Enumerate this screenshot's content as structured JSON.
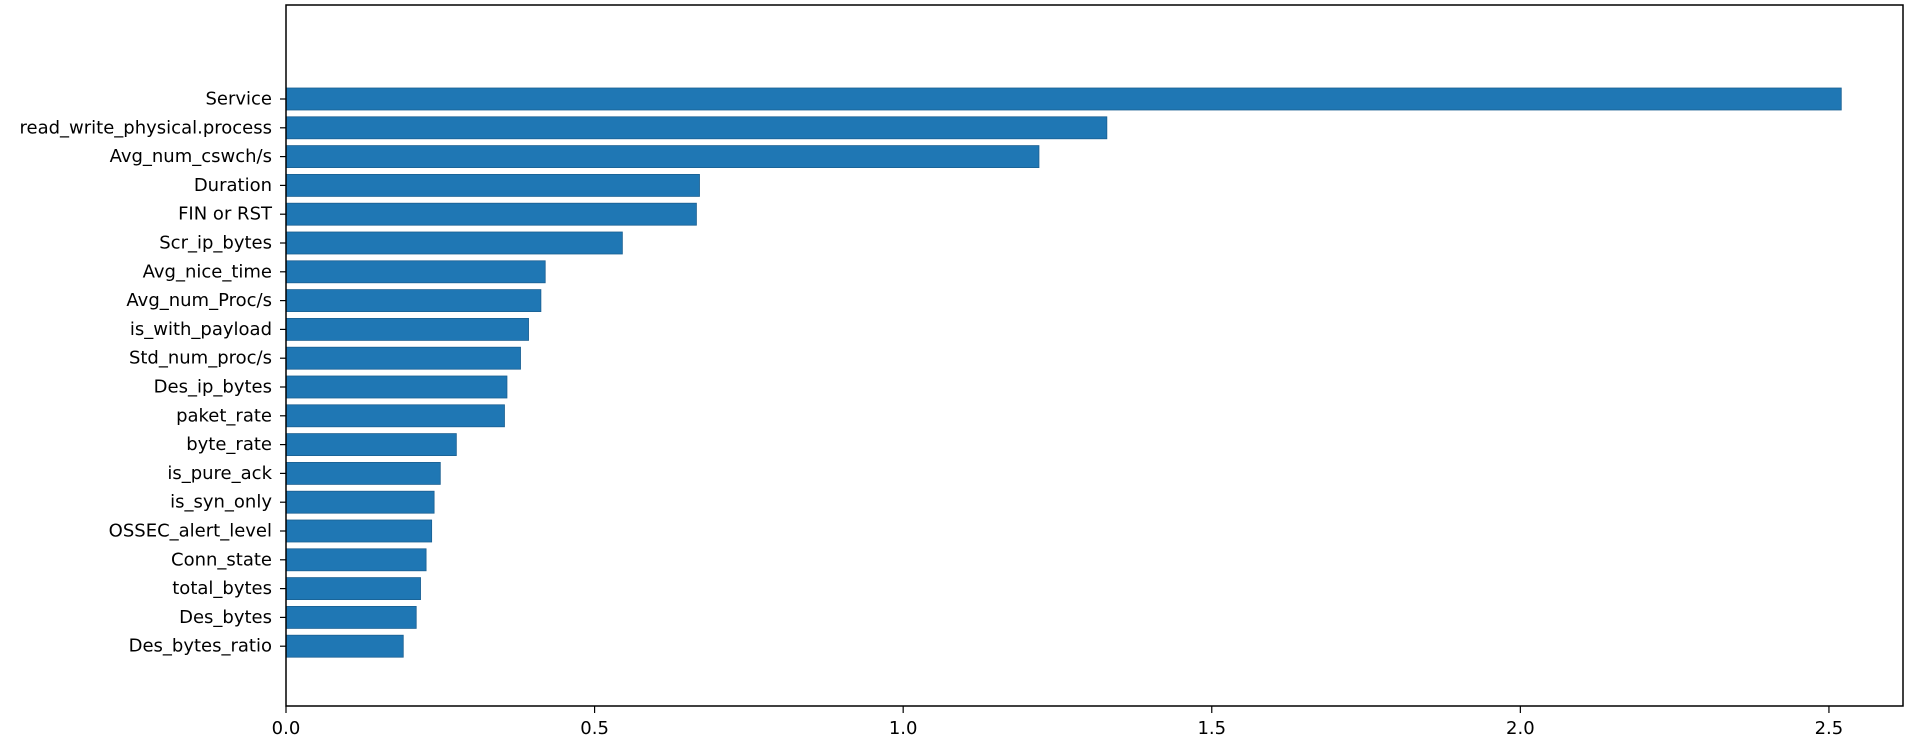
{
  "chart_data": {
    "type": "bar",
    "orientation": "horizontal",
    "categories": [
      "Service",
      "read_write_physical.process",
      "Avg_num_cswch/s",
      "Duration",
      "FIN or RST",
      "Scr_ip_bytes",
      "Avg_nice_time",
      "Avg_num_Proc/s",
      "is_with_payload",
      "Std_num_proc/s",
      "Des_ip_bytes",
      "paket_rate",
      "byte_rate",
      "is_pure_ack",
      "is_syn_only",
      "OSSEC_alert_level",
      "Conn_state",
      "total_bytes",
      "Des_bytes",
      "Des_bytes_ratio"
    ],
    "values": [
      2.52,
      1.33,
      1.22,
      0.67,
      0.665,
      0.545,
      0.42,
      0.413,
      0.393,
      0.38,
      0.358,
      0.354,
      0.276,
      0.25,
      0.24,
      0.236,
      0.227,
      0.218,
      0.211,
      0.19
    ],
    "xlim": [
      0,
      2.62
    ],
    "xticks": [
      "0.0",
      "0.5",
      "1.0",
      "1.5",
      "2.0",
      "2.5"
    ],
    "xtick_values": [
      0,
      0.5,
      1.0,
      1.5,
      2.0,
      2.5
    ],
    "title": "",
    "xlabel": "",
    "ylabel": "",
    "bar_color": "#1f77b4",
    "bar_edge_color": "#1a5f91",
    "grid": false,
    "legend": "none"
  }
}
